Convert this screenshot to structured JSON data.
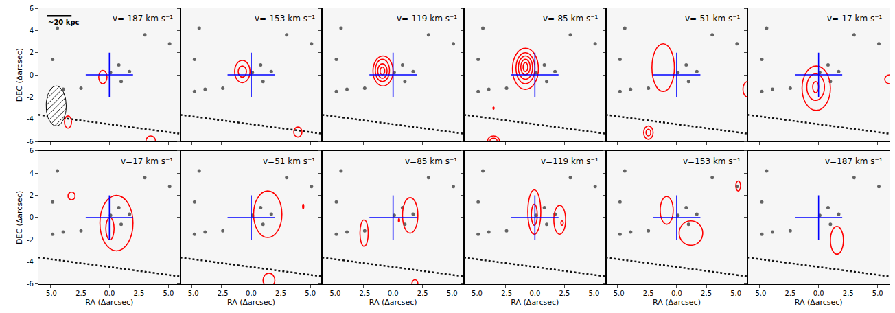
{
  "chart_data": {
    "type": "contour_panels",
    "xlabel": "RA (Δarcsec)",
    "ylabel": "DEC (Δarcsec)",
    "xlim": [
      -6,
      6
    ],
    "ylim": [
      -6,
      6
    ],
    "xticks": [
      {
        "value": -5,
        "label": "-5.0"
      },
      {
        "value": -2.5,
        "label": "-2.5"
      },
      {
        "value": 0,
        "label": "0.0"
      },
      {
        "value": 2.5,
        "label": "2.5"
      },
      {
        "value": 5,
        "label": "5.0"
      }
    ],
    "yticks": [
      -6,
      -4,
      -2,
      0,
      2,
      4,
      6
    ],
    "grid": false,
    "contour_color": "#ff0000",
    "crosshair": {
      "x": 0,
      "y": 0,
      "half_length": 2,
      "color": "#0000ff"
    },
    "sources": {
      "x": [
        5.1,
        -4.4,
        -3.9,
        -4.8,
        -2.4,
        0.1,
        1.0,
        1.7,
        0.8,
        -4.8,
        3.0
      ],
      "y": [
        2.8,
        4.2,
        -1.3,
        -1.5,
        -1.2,
        0.2,
        -0.6,
        0.3,
        0.9,
        1.4,
        3.6
      ],
      "color": "#333333"
    },
    "trail": {
      "x": [
        -6,
        6
      ],
      "y": [
        -3.6,
        -5.3
      ],
      "color": "#111111"
    },
    "beam": {
      "panel": 0,
      "x": -4.5,
      "y": -2.8,
      "width": 1.7,
      "height": 3.6
    },
    "scale_bar": {
      "panel": 0,
      "label": "~20 kpc",
      "x": [
        -5.3,
        -3.2
      ],
      "y": 5.3
    },
    "panels": [
      {
        "title": "v=-187 km s⁻¹",
        "contours": [
          {
            "x": [
              -0.9,
              -0.2
            ],
            "y": [
              -0.8,
              0.4
            ]
          },
          {
            "x": [
              -3.8,
              -3.2
            ],
            "y": [
              -4.8,
              -3.7
            ]
          },
          {
            "x": [
              3.1,
              3.9
            ],
            "y": [
              -6.4,
              -5.5
            ]
          }
        ]
      },
      {
        "title": "v=-153 km s⁻¹",
        "contours": [
          {
            "x": [
              -1.4,
              -0.1
            ],
            "y": [
              -0.7,
              1.3
            ]
          },
          {
            "x": [
              -1.1,
              -0.4
            ],
            "y": [
              -0.2,
              0.8
            ]
          },
          {
            "x": [
              3.6,
              4.3
            ],
            "y": [
              -5.6,
              -4.7
            ]
          }
        ]
      },
      {
        "title": "v=-119 km s⁻¹",
        "contours": [
          {
            "x": [
              -1.7,
              0.0
            ],
            "y": [
              -1.0,
              1.7
            ]
          },
          {
            "x": [
              -1.5,
              -0.3
            ],
            "y": [
              -0.6,
              1.4
            ]
          },
          {
            "x": [
              -1.3,
              -0.5
            ],
            "y": [
              -0.3,
              1.0
            ]
          },
          {
            "x": [
              -1.1,
              -0.7
            ],
            "y": [
              0.0,
              0.7
            ]
          }
        ]
      },
      {
        "title": "v=-85 km s⁻¹",
        "contours": [
          {
            "x": [
              -1.9,
              0.3
            ],
            "y": [
              -1.3,
              2.4
            ]
          },
          {
            "x": [
              -1.6,
              0.0
            ],
            "y": [
              -0.8,
              2.0
            ]
          },
          {
            "x": [
              -1.4,
              -0.2
            ],
            "y": [
              -0.4,
              1.7
            ]
          },
          {
            "x": [
              -1.2,
              -0.4
            ],
            "y": [
              0.0,
              1.4
            ]
          },
          {
            "x": [
              -1.0,
              -0.6
            ],
            "y": [
              0.3,
              1.1
            ]
          },
          {
            "x": [
              -3.55,
              -3.45
            ],
            "y": [
              -3.1,
              -2.9
            ]
          },
          {
            "x": [
              -4.0,
              -3.0
            ],
            "y": [
              -6.4,
              -5.5
            ]
          },
          {
            "x": [
              -3.8,
              -3.2
            ],
            "y": [
              -6.2,
              -5.7
            ]
          }
        ]
      },
      {
        "title": "v=-51 km s⁻¹",
        "contours": [
          {
            "x": [
              -2.1,
              -0.2
            ],
            "y": [
              -1.5,
              2.8
            ]
          },
          {
            "x": [
              -2.8,
              -2.0
            ],
            "y": [
              -5.8,
              -4.6
            ]
          },
          {
            "x": [
              -2.6,
              -2.2
            ],
            "y": [
              -5.5,
              -4.9
            ]
          },
          {
            "x": [
              5.6,
              6.4
            ],
            "y": [
              -2.0,
              -0.6
            ]
          }
        ]
      },
      {
        "title": "v=-17 km s⁻¹",
        "contours": [
          {
            "x": [
              -1.4,
              1.0
            ],
            "y": [
              -3.2,
              0.8
            ]
          },
          {
            "x": [
              -1.0,
              0.5
            ],
            "y": [
              -2.3,
              0.1
            ]
          },
          {
            "x": [
              -0.5,
              0.0
            ],
            "y": [
              -1.6,
              -0.6
            ]
          },
          {
            "x": [
              5.6,
              6.4
            ],
            "y": [
              -0.8,
              0.0
            ]
          }
        ]
      },
      {
        "title": "v=17 km s⁻¹",
        "contours": [
          {
            "x": [
              -0.8,
              2.0
            ],
            "y": [
              -3.0,
              2.0
            ]
          },
          {
            "x": [
              -0.3,
              0.4
            ],
            "y": [
              -2.0,
              0.0
            ]
          },
          {
            "x": [
              -3.5,
              -2.9
            ],
            "y": [
              1.6,
              2.3
            ]
          }
        ]
      },
      {
        "title": "v=51 km s⁻¹",
        "contours": [
          {
            "x": [
              0.2,
              2.6
            ],
            "y": [
              -1.8,
              2.4
            ]
          },
          {
            "x": [
              4.35,
              4.45
            ],
            "y": [
              0.8,
              1.2
            ]
          },
          {
            "x": [
              1.0,
              2.0
            ],
            "y": [
              -6.3,
              -5.0
            ]
          }
        ]
      },
      {
        "title": "v=85 km s⁻¹",
        "contours": [
          {
            "x": [
              0.8,
              2.1
            ],
            "y": [
              -1.4,
              1.8
            ]
          },
          {
            "x": [
              0.45,
              0.55
            ],
            "y": [
              -0.4,
              -0.1
            ]
          },
          {
            "x": [
              -2.8,
              -2.1
            ],
            "y": [
              -2.6,
              -0.2
            ]
          },
          {
            "x": [
              1.6,
              2.1
            ],
            "y": [
              -6.3,
              -5.6
            ]
          }
        ]
      },
      {
        "title": "v=119 km s⁻¹",
        "contours": [
          {
            "x": [
              -0.6,
              0.5
            ],
            "y": [
              -1.5,
              2.5
            ]
          },
          {
            "x": [
              -0.3,
              0.2
            ],
            "y": [
              -0.7,
              1.2
            ]
          },
          {
            "x": [
              1.6,
              2.6
            ],
            "y": [
              -1.5,
              1.1
            ]
          },
          {
            "x": [
              2.2,
              2.4
            ],
            "y": [
              -0.7,
              -0.3
            ]
          }
        ]
      },
      {
        "title": "v=153 km s⁻¹",
        "contours": [
          {
            "x": [
              -1.4,
              -0.3
            ],
            "y": [
              -0.6,
              1.9
            ]
          },
          {
            "x": [
              0.2,
              2.2
            ],
            "y": [
              -2.5,
              -0.3
            ]
          },
          {
            "x": [
              5.0,
              5.4
            ],
            "y": [
              2.4,
              3.3
            ]
          }
        ]
      },
      {
        "title": "v=187 km s⁻¹",
        "contours": [
          {
            "x": [
              1.0,
              2.1
            ],
            "y": [
              -3.3,
              -0.8
            ]
          }
        ]
      }
    ]
  }
}
